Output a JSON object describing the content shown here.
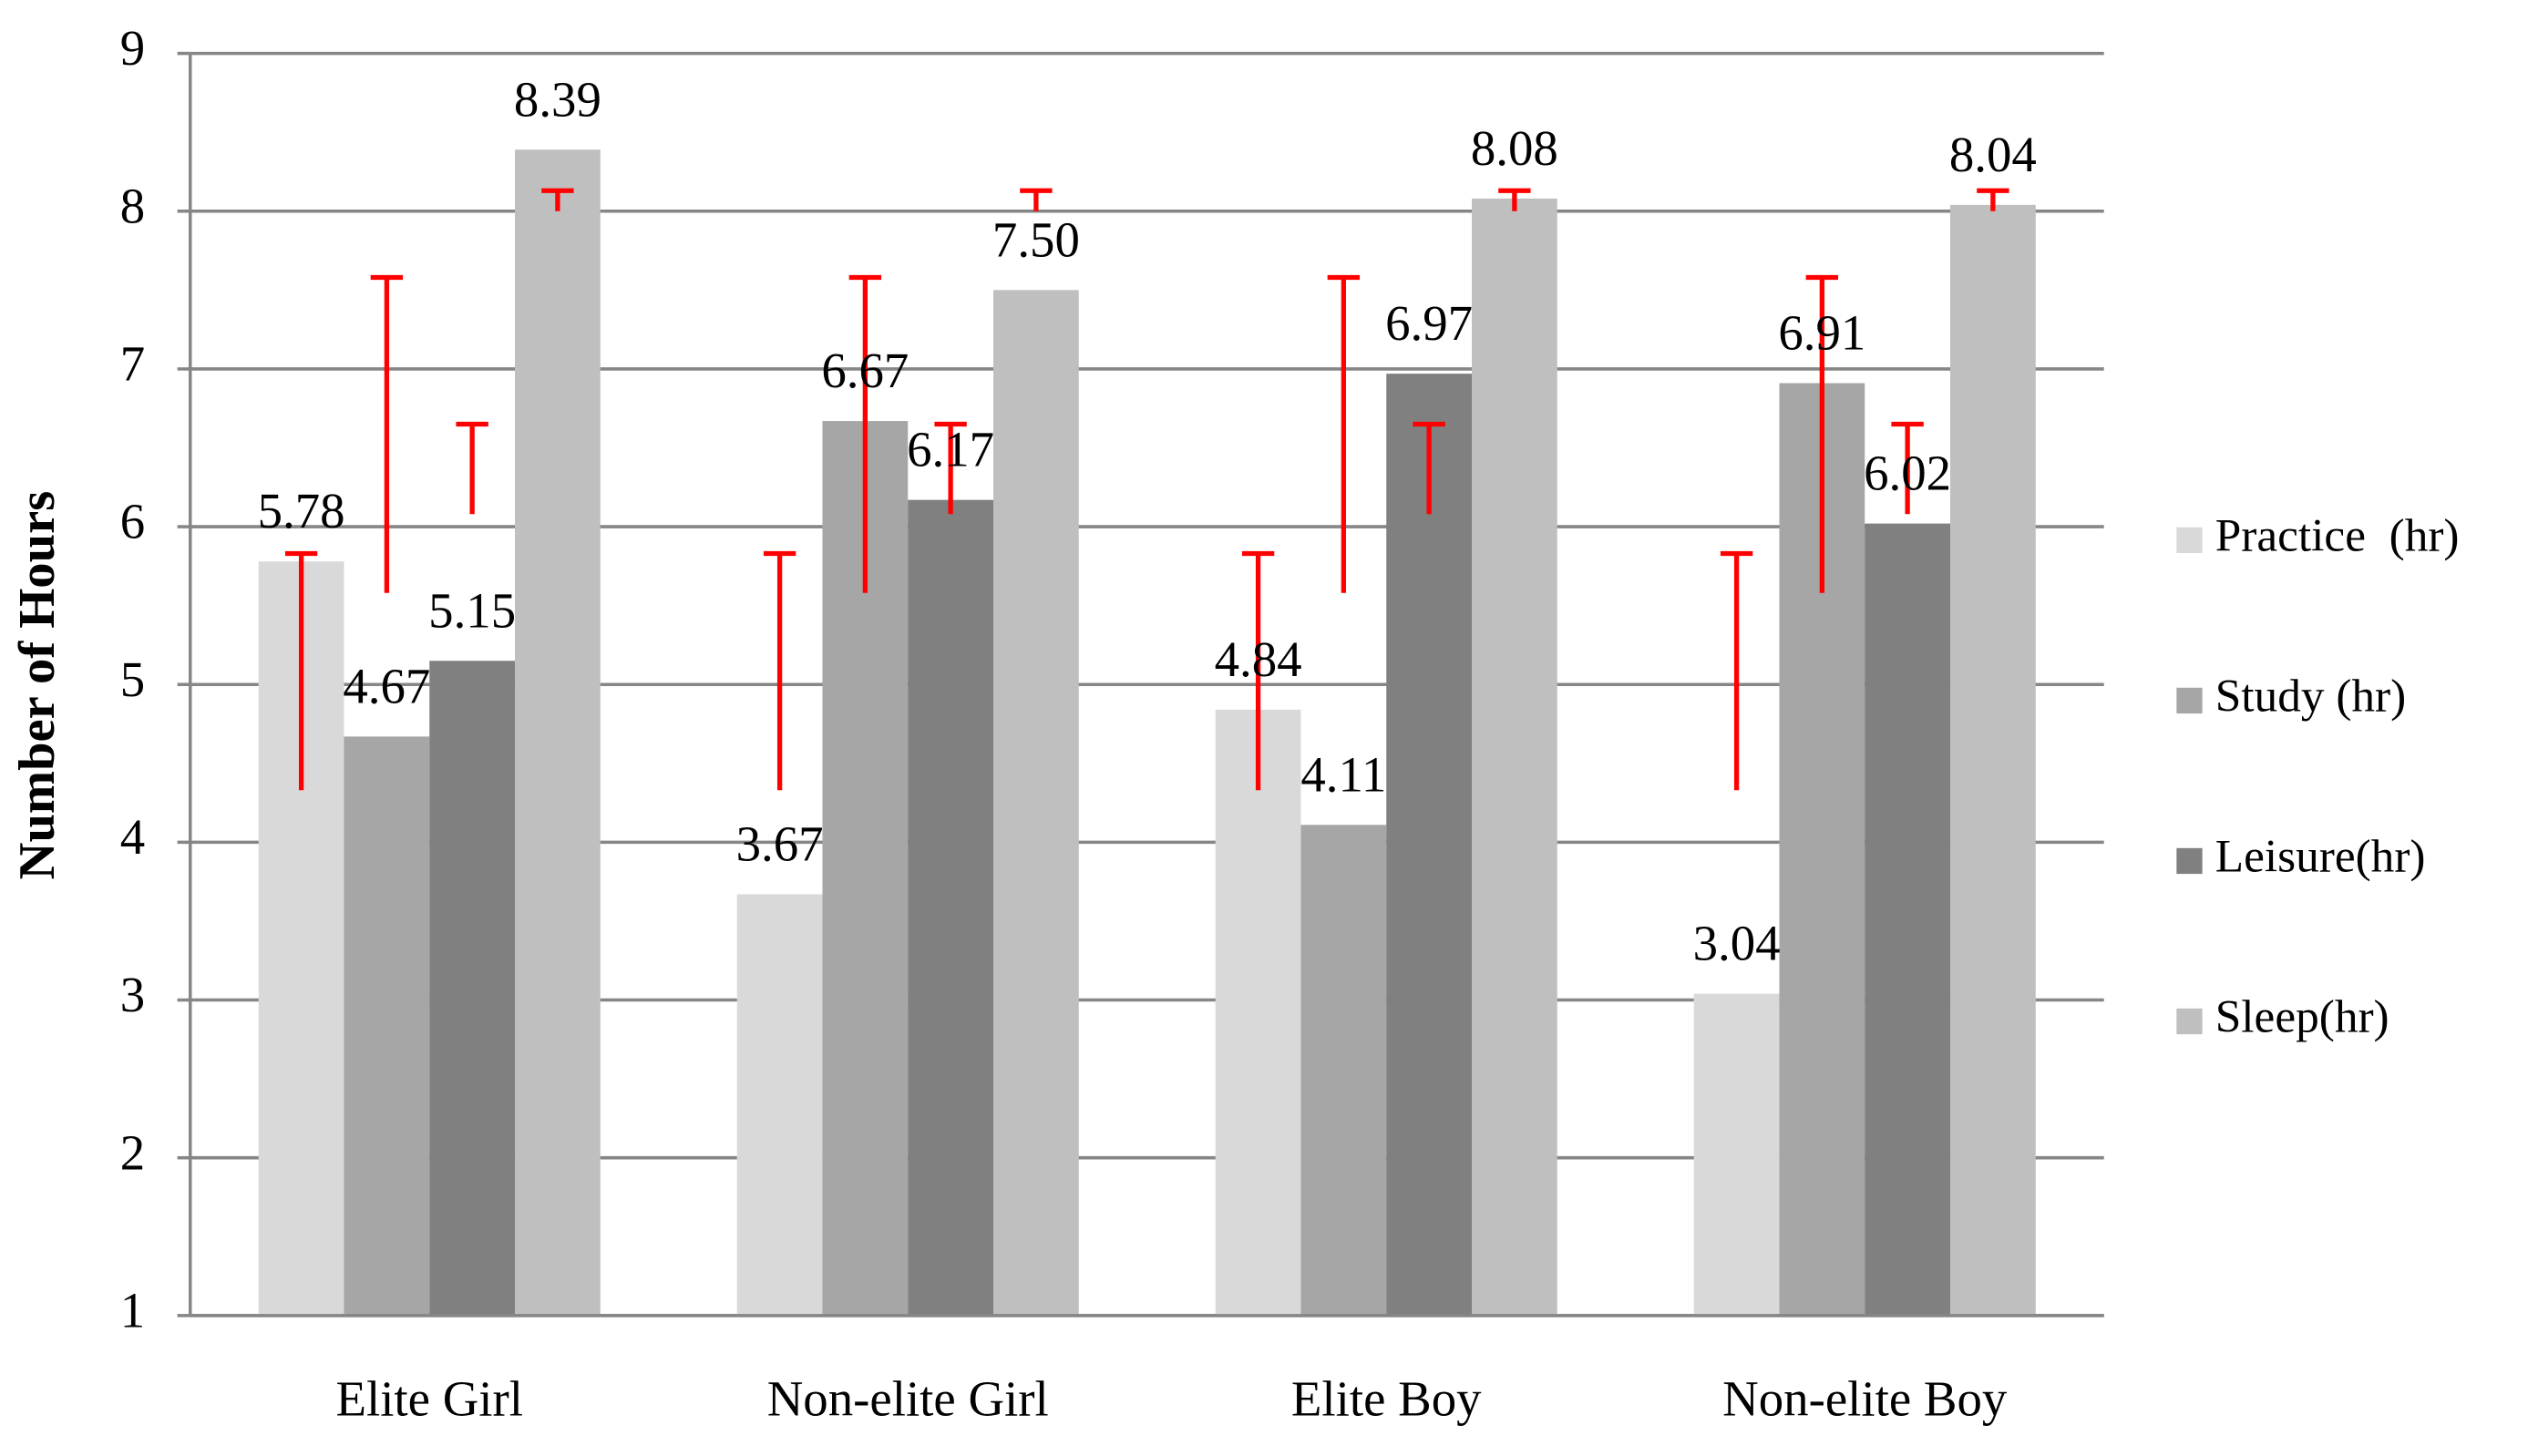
{
  "chart_data": {
    "type": "bar",
    "y_label": "Number of Hours",
    "categories": [
      "Elite Girl",
      "Non-elite Girl",
      "Elite Boy",
      "Non-elite Boy"
    ],
    "series": [
      {
        "name": "Practice  (hr)",
        "color": "#d9d9d9",
        "values": [
          5.78,
          3.67,
          4.84,
          3.04
        ],
        "errors": [
          [
            4.33,
            5.83
          ],
          [
            4.33,
            5.83
          ],
          [
            4.33,
            5.83
          ],
          [
            4.33,
            5.83
          ]
        ]
      },
      {
        "name": "Study (hr)",
        "color": "#a6a6a6",
        "values": [
          4.67,
          6.67,
          4.11,
          6.91
        ],
        "errors": [
          [
            5.58,
            7.58
          ],
          [
            5.58,
            7.58
          ],
          [
            5.58,
            7.58
          ],
          [
            5.58,
            7.58
          ]
        ]
      },
      {
        "name": "Leisure(hr)",
        "color": "#808080",
        "values": [
          5.15,
          6.17,
          6.97,
          6.02
        ],
        "errors": [
          [
            6.08,
            6.65
          ],
          [
            6.08,
            6.65
          ],
          [
            6.08,
            6.65
          ],
          [
            6.08,
            6.65
          ]
        ]
      },
      {
        "name": "Sleep(hr)",
        "color": "#bfbfbf",
        "values": [
          8.39,
          7.5,
          8.08,
          8.04
        ],
        "value_labels": [
          "8.39",
          "7.50",
          "8.08",
          "8.04"
        ],
        "errors": [
          [
            8.0,
            8.13
          ],
          [
            8.0,
            8.13
          ],
          [
            8.0,
            8.13
          ],
          [
            8.0,
            8.13
          ]
        ]
      }
    ],
    "error_color": "#ff0000",
    "ylim": [
      1,
      9
    ],
    "yticks": [
      1,
      2,
      3,
      4,
      5,
      6,
      7,
      8,
      9
    ],
    "grid": true,
    "legend": "right"
  }
}
